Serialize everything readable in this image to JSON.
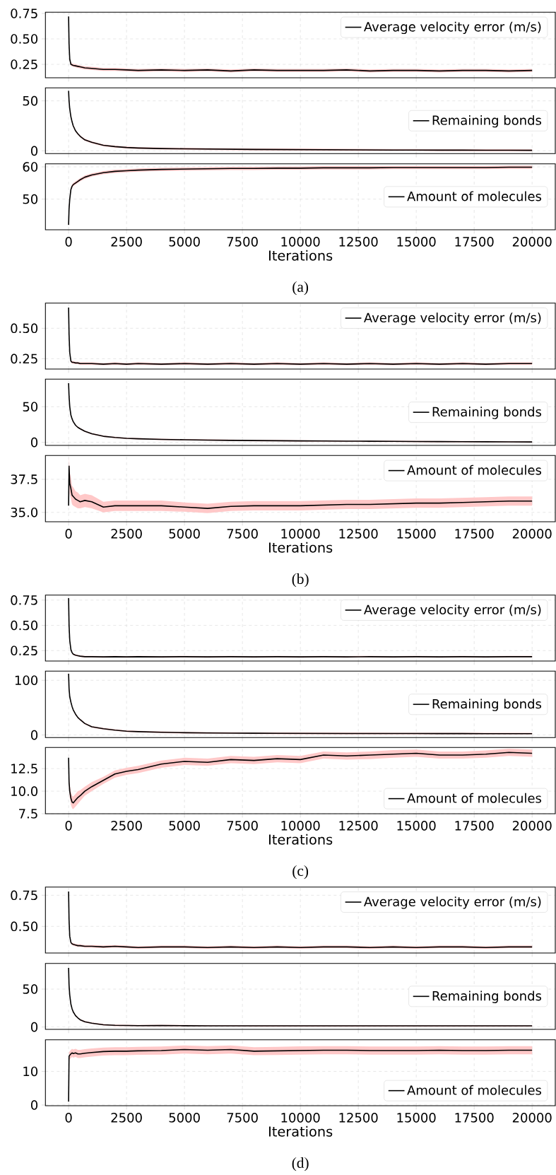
{
  "chart_data": [
    {
      "type": "line",
      "x": [
        0,
        20,
        50,
        100,
        150,
        200,
        300,
        400,
        500,
        700,
        1000,
        1500,
        2000,
        2500,
        3000,
        4000,
        5000,
        6000,
        7000,
        8000,
        9000,
        10000,
        11000,
        12000,
        13000,
        14000,
        15000,
        16000,
        17000,
        18000,
        19000,
        20000
      ],
      "xlim": [
        -1000,
        21000
      ],
      "xticks": [
        0,
        2500,
        5000,
        7500,
        10000,
        12500,
        15000,
        17500,
        20000
      ],
      "ylim": [
        0.118,
        0.762
      ],
      "yticks": [
        {
          "value": 0.25,
          "label": "0.25"
        },
        {
          "value": 0.5,
          "label": "0.50"
        },
        {
          "value": 0.75,
          "label": "0.75"
        }
      ],
      "grid": true,
      "legend": "top right",
      "tick_labels": "y",
      "series": [
        {
          "name": "Average velocity error (m/s)",
          "color": "#000000",
          "values": [
            0.72,
            0.45,
            0.3,
            0.25,
            0.245,
            0.24,
            0.235,
            0.23,
            0.225,
            0.215,
            0.21,
            0.2,
            0.2,
            0.195,
            0.19,
            0.195,
            0.19,
            0.195,
            0.185,
            0.195,
            0.19,
            0.19,
            0.19,
            0.195,
            0.185,
            0.19,
            0.19,
            0.185,
            0.19,
            0.19,
            0.185,
            0.19
          ],
          "lower": [
            0.705,
            0.435,
            0.285,
            0.235,
            0.23,
            0.225,
            0.22,
            0.215,
            0.21,
            0.2,
            0.195,
            0.185,
            0.185,
            0.18,
            0.175,
            0.18,
            0.175,
            0.18,
            0.17,
            0.18,
            0.175,
            0.175,
            0.175,
            0.18,
            0.17,
            0.175,
            0.175,
            0.17,
            0.175,
            0.175,
            0.17,
            0.175
          ],
          "upper": [
            0.735,
            0.465,
            0.315,
            0.265,
            0.26,
            0.255,
            0.25,
            0.245,
            0.24,
            0.23,
            0.225,
            0.215,
            0.215,
            0.21,
            0.205,
            0.21,
            0.205,
            0.21,
            0.2,
            0.21,
            0.205,
            0.205,
            0.205,
            0.21,
            0.2,
            0.205,
            0.205,
            0.2,
            0.205,
            0.205,
            0.2,
            0.205
          ]
        }
      ]
    },
    {
      "type": "line",
      "x": [
        0,
        20,
        50,
        100,
        150,
        200,
        300,
        400,
        500,
        700,
        1000,
        1500,
        2000,
        2500,
        3000,
        4000,
        5000,
        6000,
        7000,
        8000,
        9000,
        10000,
        11000,
        12000,
        13000,
        14000,
        15000,
        16000,
        17000,
        18000,
        19000,
        20000
      ],
      "xlim": [
        -1000,
        21000
      ],
      "xticks": [
        0,
        2500,
        5000,
        7500,
        10000,
        12500,
        15000,
        17500,
        20000
      ],
      "ylim": [
        -2.8,
        63
      ],
      "yticks": [
        0,
        50
      ],
      "grid": true,
      "legend": "right",
      "tick_labels": "y",
      "series": [
        {
          "name": "Remaining bonds",
          "color": "#000000",
          "values": [
            60,
            50,
            42,
            34,
            29,
            25,
            20,
            17,
            14.5,
            11,
            8.5,
            5.5,
            4.2,
            3.3,
            2.8,
            2.3,
            2.0,
            1.8,
            1.6,
            1.4,
            1.3,
            1.2,
            1.1,
            1.0,
            0.9,
            0.8,
            0.8,
            0.7,
            0.7,
            0.6,
            0.6,
            0.5
          ],
          "lower": [
            59,
            49,
            41,
            33,
            28,
            24,
            19,
            16,
            13.5,
            10,
            7.5,
            4.5,
            3.2,
            2.3,
            1.8,
            1.3,
            1.0,
            0.8,
            0.6,
            0.4,
            0.3,
            0.2,
            0.1,
            0.0,
            -0.1,
            -0.2,
            -0.2,
            -0.3,
            -0.3,
            -0.4,
            -0.4,
            -0.5
          ],
          "upper": [
            61,
            51,
            43,
            35,
            30,
            26,
            21,
            18,
            15.5,
            12,
            9.5,
            6.5,
            5.2,
            4.3,
            3.8,
            3.3,
            3.0,
            2.8,
            2.6,
            2.4,
            2.3,
            2.2,
            2.1,
            2.0,
            1.9,
            1.8,
            1.8,
            1.7,
            1.7,
            1.6,
            1.6,
            1.5
          ]
        }
      ]
    },
    {
      "type": "line",
      "x": [
        0,
        20,
        50,
        100,
        150,
        200,
        300,
        400,
        500,
        700,
        1000,
        1500,
        2000,
        2500,
        3000,
        4000,
        5000,
        6000,
        7000,
        8000,
        9000,
        10000,
        11000,
        12000,
        13000,
        14000,
        15000,
        16000,
        17000,
        18000,
        19000,
        20000
      ],
      "xlim": [
        -1000,
        21000
      ],
      "xticks": [
        0,
        2500,
        5000,
        7500,
        10000,
        12500,
        15000,
        17500,
        20000
      ],
      "ylim": [
        40.5,
        60.95
      ],
      "yticks": [
        50,
        60
      ],
      "grid": true,
      "legend": "right",
      "xlabel": "Iterations",
      "annotations": [
        "(a)"
      ],
      "series": [
        {
          "name": "Amount of molecules",
          "color": "#000000",
          "values": [
            42,
            47,
            50,
            53,
            54,
            54.5,
            55,
            55.5,
            56,
            56.8,
            57.5,
            58.2,
            58.6,
            58.8,
            59,
            59.2,
            59.3,
            59.4,
            59.5,
            59.5,
            59.6,
            59.6,
            59.7,
            59.7,
            59.7,
            59.8,
            59.8,
            59.8,
            59.8,
            59.8,
            59.9,
            59.9
          ],
          "lower": [
            41.5,
            46.5,
            49.5,
            52.5,
            53.5,
            54,
            54.5,
            55,
            55.5,
            56.3,
            57,
            57.7,
            58.1,
            58.3,
            58.5,
            58.7,
            58.8,
            58.9,
            59,
            59,
            59.1,
            59.1,
            59.2,
            59.2,
            59.2,
            59.3,
            59.3,
            59.3,
            59.3,
            59.3,
            59.4,
            59.4
          ],
          "upper": [
            42.5,
            47.5,
            50.5,
            53.5,
            54.5,
            55,
            55.5,
            56,
            56.5,
            57.3,
            58,
            58.7,
            59.1,
            59.3,
            59.5,
            59.7,
            59.8,
            59.9,
            60,
            60,
            60.1,
            60.1,
            60.2,
            60.2,
            60.2,
            60.3,
            60.3,
            60.3,
            60.3,
            60.3,
            60.4,
            60.4
          ]
        }
      ]
    },
    {
      "type": "line",
      "x": [
        0,
        20,
        50,
        100,
        150,
        200,
        300,
        400,
        500,
        700,
        1000,
        1500,
        2000,
        2500,
        3000,
        4000,
        5000,
        6000,
        7000,
        8000,
        9000,
        10000,
        11000,
        12000,
        13000,
        14000,
        15000,
        16000,
        17000,
        18000,
        19000,
        20000
      ],
      "xlim": [
        -1000,
        21000
      ],
      "xticks": [
        0,
        2500,
        5000,
        7500,
        10000,
        12500,
        15000,
        17500,
        20000
      ],
      "ylim": [
        0.165,
        0.707
      ],
      "yticks": [
        {
          "value": 0.25,
          "label": "0.25"
        },
        {
          "value": 0.5,
          "label": "0.50"
        }
      ],
      "grid": true,
      "legend": "top right",
      "tick_labels": "y",
      "series": [
        {
          "name": "Average velocity error (m/s)",
          "color": "#000000",
          "values": [
            0.67,
            0.45,
            0.3,
            0.23,
            0.22,
            0.22,
            0.215,
            0.215,
            0.21,
            0.21,
            0.21,
            0.205,
            0.21,
            0.205,
            0.21,
            0.205,
            0.21,
            0.205,
            0.21,
            0.205,
            0.21,
            0.205,
            0.21,
            0.205,
            0.21,
            0.205,
            0.21,
            0.205,
            0.21,
            0.205,
            0.21,
            0.21
          ],
          "lower": [
            0.66,
            0.44,
            0.29,
            0.22,
            0.21,
            0.21,
            0.205,
            0.205,
            0.2,
            0.2,
            0.2,
            0.195,
            0.2,
            0.195,
            0.2,
            0.195,
            0.2,
            0.195,
            0.2,
            0.195,
            0.2,
            0.195,
            0.2,
            0.195,
            0.2,
            0.195,
            0.2,
            0.195,
            0.2,
            0.195,
            0.2,
            0.2
          ],
          "upper": [
            0.68,
            0.46,
            0.31,
            0.24,
            0.23,
            0.23,
            0.225,
            0.225,
            0.22,
            0.22,
            0.22,
            0.215,
            0.22,
            0.215,
            0.22,
            0.215,
            0.22,
            0.215,
            0.22,
            0.215,
            0.22,
            0.215,
            0.22,
            0.215,
            0.22,
            0.215,
            0.22,
            0.215,
            0.22,
            0.215,
            0.22,
            0.22
          ]
        }
      ]
    },
    {
      "type": "line",
      "x": [
        0,
        20,
        50,
        100,
        150,
        200,
        300,
        400,
        500,
        700,
        1000,
        1500,
        2000,
        2500,
        3000,
        4000,
        5000,
        6000,
        7000,
        8000,
        9000,
        10000,
        11000,
        12000,
        13000,
        14000,
        15000,
        16000,
        17000,
        18000,
        19000,
        20000
      ],
      "xlim": [
        -1000,
        21000
      ],
      "xticks": [
        0,
        2500,
        5000,
        7500,
        10000,
        12500,
        15000,
        17500,
        20000
      ],
      "ylim": [
        -4.3,
        88.7
      ],
      "yticks": [
        0,
        50
      ],
      "grid": true,
      "legend": "right",
      "tick_labels": "y",
      "series": [
        {
          "name": "Remaining bonds",
          "color": "#000000",
          "values": [
            83,
            65,
            50,
            38,
            33,
            29,
            24,
            21,
            19,
            15.5,
            12,
            8.5,
            6.8,
            5.6,
            5,
            4.2,
            3.6,
            3.2,
            2.8,
            2.5,
            2.3,
            2.0,
            1.9,
            1.7,
            1.5,
            1.4,
            1.2,
            1.0,
            0.9,
            0.8,
            0.7,
            0.5
          ],
          "lower": [
            82,
            64,
            49,
            37,
            32,
            28,
            23,
            20,
            18,
            14.5,
            11,
            7.5,
            5.8,
            4.6,
            4,
            3.2,
            2.6,
            2.2,
            1.8,
            1.5,
            1.3,
            1.0,
            0.9,
            0.7,
            0.5,
            0.4,
            0.2,
            0.0,
            -0.1,
            -0.2,
            -0.3,
            -0.5
          ],
          "upper": [
            84,
            66,
            51,
            39,
            34,
            30,
            25,
            22,
            20,
            16.5,
            13,
            9.5,
            7.8,
            6.6,
            6,
            5.2,
            4.6,
            4.2,
            3.8,
            3.5,
            3.3,
            3.0,
            2.9,
            2.7,
            2.5,
            2.4,
            2.2,
            2.0,
            1.85,
            1.8,
            1.7,
            1.5
          ]
        }
      ]
    },
    {
      "type": "line",
      "x": [
        0,
        20,
        50,
        100,
        150,
        200,
        300,
        400,
        500,
        700,
        1000,
        1500,
        2000,
        2500,
        3000,
        4000,
        5000,
        6000,
        7000,
        8000,
        9000,
        10000,
        11000,
        12000,
        13000,
        14000,
        15000,
        16000,
        17000,
        18000,
        19000,
        20000
      ],
      "xlim": [
        -1000,
        21000
      ],
      "xticks": [
        0,
        2500,
        5000,
        7500,
        10000,
        12500,
        15000,
        17500,
        20000
      ],
      "ylim": [
        34.29,
        39.3
      ],
      "yticks": [
        {
          "value": 35,
          "label": "35.0"
        },
        {
          "value": 37.5,
          "label": "37.5"
        }
      ],
      "grid": true,
      "legend": "top right",
      "xlabel": "Iterations",
      "annotations": [
        "(b)"
      ],
      "series": [
        {
          "name": "Amount of molecules",
          "color": "#000000",
          "values": [
            35.5,
            38.5,
            37.2,
            36.8,
            36.3,
            36.2,
            36.0,
            35.9,
            35.8,
            35.9,
            35.8,
            35.4,
            35.5,
            35.5,
            35.5,
            35.5,
            35.4,
            35.3,
            35.45,
            35.5,
            35.5,
            35.5,
            35.55,
            35.6,
            35.6,
            35.65,
            35.7,
            35.7,
            35.75,
            35.8,
            35.85,
            35.85
          ],
          "lower": [
            35.0,
            37.8,
            36.4,
            36.0,
            35.6,
            35.5,
            35.4,
            35.3,
            35.3,
            35.4,
            35.3,
            35.0,
            35.1,
            35.1,
            35.1,
            35.1,
            35.05,
            34.95,
            35.1,
            35.15,
            35.15,
            35.15,
            35.2,
            35.25,
            35.25,
            35.3,
            35.35,
            35.35,
            35.4,
            35.45,
            35.5,
            35.5
          ],
          "upper": [
            36.0,
            39.2,
            38.0,
            37.6,
            37.0,
            36.9,
            36.6,
            36.5,
            36.3,
            36.4,
            36.3,
            35.8,
            35.9,
            35.9,
            35.9,
            35.9,
            35.75,
            35.65,
            35.8,
            35.85,
            35.85,
            35.85,
            35.9,
            35.95,
            35.95,
            36.0,
            36.05,
            36.05,
            36.1,
            36.15,
            36.2,
            36.2
          ]
        }
      ]
    },
    {
      "type": "line",
      "x": [
        0,
        20,
        50,
        100,
        150,
        200,
        300,
        400,
        500,
        700,
        1000,
        1500,
        2000,
        2500,
        3000,
        4000,
        5000,
        6000,
        7000,
        8000,
        9000,
        10000,
        11000,
        12000,
        13000,
        14000,
        15000,
        16000,
        17000,
        18000,
        19000,
        20000
      ],
      "xlim": [
        -1000,
        21000
      ],
      "xticks": [
        0,
        2500,
        5000,
        7500,
        10000,
        12500,
        15000,
        17500,
        20000
      ],
      "ylim": [
        0.147,
        0.8
      ],
      "yticks": [
        {
          "value": 0.25,
          "label": "0.25"
        },
        {
          "value": 0.5,
          "label": "0.50"
        },
        {
          "value": 0.75,
          "label": "0.75"
        }
      ],
      "grid": true,
      "legend": "top right",
      "tick_labels": "y",
      "series": [
        {
          "name": "Average velocity error (m/s)",
          "color": "#000000",
          "values": [
            0.77,
            0.5,
            0.35,
            0.26,
            0.23,
            0.215,
            0.205,
            0.2,
            0.195,
            0.19,
            0.19,
            0.188,
            0.19,
            0.188,
            0.19,
            0.188,
            0.19,
            0.188,
            0.19,
            0.188,
            0.19,
            0.188,
            0.19,
            0.188,
            0.19,
            0.188,
            0.19,
            0.188,
            0.19,
            0.188,
            0.19,
            0.19
          ],
          "lower": [
            0.762,
            0.492,
            0.342,
            0.252,
            0.222,
            0.207,
            0.197,
            0.192,
            0.187,
            0.182,
            0.182,
            0.18,
            0.182,
            0.18,
            0.182,
            0.18,
            0.182,
            0.18,
            0.182,
            0.18,
            0.182,
            0.18,
            0.182,
            0.18,
            0.182,
            0.18,
            0.182,
            0.18,
            0.182,
            0.18,
            0.182,
            0.182
          ],
          "upper": [
            0.778,
            0.508,
            0.358,
            0.268,
            0.238,
            0.223,
            0.213,
            0.208,
            0.203,
            0.198,
            0.198,
            0.196,
            0.198,
            0.196,
            0.198,
            0.196,
            0.198,
            0.196,
            0.198,
            0.196,
            0.198,
            0.196,
            0.198,
            0.196,
            0.198,
            0.196,
            0.198,
            0.196,
            0.198,
            0.196,
            0.198,
            0.198
          ]
        }
      ]
    },
    {
      "type": "line",
      "x": [
        0,
        20,
        50,
        100,
        150,
        200,
        300,
        400,
        500,
        700,
        1000,
        1500,
        2000,
        2500,
        3000,
        4000,
        5000,
        6000,
        7000,
        8000,
        9000,
        10000,
        11000,
        12000,
        13000,
        14000,
        15000,
        16000,
        17000,
        18000,
        19000,
        20000
      ],
      "xlim": [
        -1000,
        21000
      ],
      "xticks": [
        0,
        2500,
        5000,
        7500,
        10000,
        12500,
        15000,
        17500,
        20000
      ],
      "ylim": [
        -4.7,
        116.8
      ],
      "yticks": [
        0,
        100
      ],
      "grid": true,
      "legend": "right",
      "tick_labels": "y",
      "series": [
        {
          "name": "Remaining bonds",
          "color": "#000000",
          "values": [
            112,
            85,
            70,
            60,
            52,
            46,
            38,
            32,
            28,
            21,
            15,
            11.5,
            9,
            7,
            6.2,
            5,
            4.2,
            3.8,
            3.5,
            3.3,
            3.1,
            3.0,
            2.9,
            2.8,
            2.8,
            2.7,
            2.7,
            2.6,
            2.6,
            2.5,
            2.5,
            2.5
          ],
          "lower": [
            110.5,
            83.5,
            68.5,
            58.5,
            50.5,
            44.5,
            36.5,
            30.5,
            26.5,
            19.5,
            13.5,
            10,
            7.5,
            5.5,
            4.7,
            3.5,
            2.7,
            2.3,
            2,
            1.8,
            1.6,
            1.5,
            1.4,
            1.3,
            1.3,
            1.2,
            1.2,
            1.1,
            1.1,
            1,
            1,
            1
          ],
          "upper": [
            113.5,
            86.5,
            71.5,
            61.5,
            53.5,
            47.5,
            39.5,
            33.5,
            29.5,
            22.5,
            16.5,
            13,
            10.5,
            8.5,
            7.7,
            6.5,
            5.7,
            5.3,
            5,
            4.8,
            4.6,
            4.5,
            4.4,
            4.3,
            4.3,
            4.2,
            4.2,
            4.1,
            4.1,
            4,
            4,
            4
          ]
        }
      ]
    },
    {
      "type": "line",
      "x": [
        0,
        20,
        50,
        100,
        150,
        200,
        300,
        400,
        500,
        700,
        1000,
        1500,
        2000,
        2500,
        3000,
        4000,
        5000,
        6000,
        7000,
        8000,
        9000,
        10000,
        11000,
        12000,
        13000,
        14000,
        15000,
        16000,
        17000,
        18000,
        19000,
        20000
      ],
      "xlim": [
        -1000,
        21000
      ],
      "xticks": [
        0,
        2500,
        5000,
        7500,
        10000,
        12500,
        15000,
        17500,
        20000
      ],
      "ylim": [
        7.5,
        14.84
      ],
      "yticks": [
        {
          "value": 7.5,
          "label": "7.5"
        },
        {
          "value": 10,
          "label": "10.0"
        },
        {
          "value": 12.5,
          "label": "12.5"
        }
      ],
      "grid": true,
      "legend": "bottom right",
      "xlabel": "Iterations",
      "annotations": [
        "(c)"
      ],
      "series": [
        {
          "name": "Amount of molecules",
          "color": "#000000",
          "values": [
            13.7,
            11,
            10,
            9.2,
            8.8,
            8.7,
            9.0,
            9.3,
            9.5,
            10.0,
            10.5,
            11.2,
            11.9,
            12.2,
            12.4,
            13.0,
            13.3,
            13.2,
            13.5,
            13.4,
            13.6,
            13.5,
            14.0,
            13.9,
            14.0,
            14.1,
            14.2,
            14.0,
            14.0,
            14.1,
            14.3,
            14.2
          ],
          "lower": [
            13.2,
            10.3,
            9.3,
            8.5,
            8.1,
            8.0,
            8.3,
            8.6,
            8.9,
            9.5,
            10.0,
            10.8,
            11.5,
            11.8,
            12.0,
            12.6,
            12.9,
            12.8,
            13.1,
            13.0,
            13.2,
            13.1,
            13.6,
            13.5,
            13.55,
            13.7,
            13.8,
            13.6,
            13.6,
            13.7,
            13.9,
            13.8
          ],
          "upper": [
            14.2,
            11.7,
            10.7,
            9.9,
            9.5,
            9.4,
            9.7,
            10.0,
            10.1,
            10.5,
            11.0,
            11.6,
            12.3,
            12.6,
            12.8,
            13.4,
            13.7,
            13.6,
            13.9,
            13.8,
            14.0,
            13.9,
            14.4,
            14.3,
            14.4,
            14.55,
            14.6,
            14.4,
            14.4,
            14.5,
            14.7,
            14.6
          ]
        }
      ]
    },
    {
      "type": "line",
      "x": [
        0,
        20,
        50,
        100,
        150,
        200,
        300,
        400,
        500,
        700,
        1000,
        1500,
        2000,
        2500,
        3000,
        4000,
        5000,
        6000,
        7000,
        8000,
        9000,
        10000,
        11000,
        12000,
        13000,
        14000,
        15000,
        16000,
        17000,
        18000,
        19000,
        20000
      ],
      "xlim": [
        -1000,
        21000
      ],
      "xticks": [
        0,
        2500,
        5000,
        7500,
        10000,
        12500,
        15000,
        17500,
        20000
      ],
      "ylim": [
        0.286,
        0.816
      ],
      "yticks": [
        {
          "value": 0.5,
          "label": "0.50"
        },
        {
          "value": 0.75,
          "label": "0.75"
        }
      ],
      "grid": true,
      "legend": "top right",
      "tick_labels": "y",
      "series": [
        {
          "name": "Average velocity error (m/s)",
          "color": "#000000",
          "values": [
            0.78,
            0.55,
            0.42,
            0.37,
            0.36,
            0.355,
            0.35,
            0.345,
            0.345,
            0.34,
            0.34,
            0.335,
            0.34,
            0.335,
            0.33,
            0.335,
            0.335,
            0.33,
            0.335,
            0.33,
            0.335,
            0.33,
            0.335,
            0.335,
            0.33,
            0.335,
            0.33,
            0.335,
            0.335,
            0.33,
            0.335,
            0.335
          ],
          "lower": [
            0.77,
            0.54,
            0.41,
            0.36,
            0.35,
            0.345,
            0.34,
            0.335,
            0.335,
            0.33,
            0.33,
            0.325,
            0.33,
            0.325,
            0.32,
            0.325,
            0.325,
            0.32,
            0.325,
            0.32,
            0.325,
            0.32,
            0.325,
            0.325,
            0.32,
            0.325,
            0.32,
            0.325,
            0.325,
            0.32,
            0.325,
            0.325
          ],
          "upper": [
            0.79,
            0.56,
            0.43,
            0.38,
            0.37,
            0.365,
            0.36,
            0.355,
            0.355,
            0.35,
            0.35,
            0.345,
            0.35,
            0.345,
            0.34,
            0.345,
            0.345,
            0.34,
            0.345,
            0.34,
            0.345,
            0.34,
            0.345,
            0.345,
            0.34,
            0.345,
            0.34,
            0.345,
            0.345,
            0.34,
            0.345,
            0.345
          ]
        }
      ]
    },
    {
      "type": "line",
      "x": [
        0,
        20,
        50,
        100,
        150,
        200,
        300,
        400,
        500,
        700,
        1000,
        1500,
        2000,
        2500,
        3000,
        4000,
        5000,
        6000,
        7000,
        8000,
        9000,
        10000,
        11000,
        12000,
        13000,
        14000,
        15000,
        16000,
        17000,
        18000,
        19000,
        20000
      ],
      "xlim": [
        -1000,
        21000
      ],
      "xticks": [
        0,
        2500,
        5000,
        7500,
        10000,
        12500,
        15000,
        17500,
        20000
      ],
      "ylim": [
        -3.1,
        83.9
      ],
      "yticks": [
        0,
        50
      ],
      "grid": true,
      "legend": "right",
      "tick_labels": "y",
      "series": [
        {
          "name": "Remaining bonds",
          "color": "#000000",
          "values": [
            78,
            55,
            42,
            30,
            24,
            20,
            15,
            12,
            9.5,
            7,
            5,
            3,
            2.2,
            2,
            1.8,
            1.9,
            1.7,
            1.6,
            1.6,
            1.5,
            1.5,
            1.5,
            1.5,
            1.5,
            1.5,
            1.5,
            1.5,
            1.5,
            1.5,
            1.5,
            1.5,
            1.5
          ],
          "lower": [
            77,
            54,
            41,
            29,
            23,
            19,
            14,
            11,
            8.5,
            6,
            4,
            2,
            1.2,
            1,
            0.8,
            0.9,
            0.7,
            0.6,
            0.6,
            0.5,
            0.5,
            0.5,
            0.5,
            0.5,
            0.5,
            0.5,
            0.5,
            0.5,
            0.5,
            0.5,
            0.5,
            0.5
          ],
          "upper": [
            79,
            56,
            43,
            31,
            25,
            21,
            16,
            13,
            10.5,
            8,
            6,
            4,
            3.2,
            3,
            2.8,
            2.9,
            2.7,
            2.6,
            2.6,
            2.5,
            2.5,
            2.5,
            2.5,
            2.5,
            2.5,
            2.5,
            2.5,
            2.5,
            2.5,
            2.5,
            2.5,
            2.5
          ]
        }
      ]
    },
    {
      "type": "line",
      "x": [
        0,
        20,
        50,
        100,
        150,
        200,
        300,
        400,
        500,
        700,
        1000,
        1500,
        2000,
        2500,
        3000,
        4000,
        5000,
        6000,
        7000,
        8000,
        9000,
        10000,
        11000,
        12000,
        13000,
        14000,
        15000,
        16000,
        17000,
        18000,
        19000,
        20000
      ],
      "xlim": [
        -1000,
        21000
      ],
      "xticks": [
        0,
        2500,
        5000,
        7500,
        10000,
        12500,
        15000,
        17500,
        20000
      ],
      "ylim": [
        -0.2,
        19.4
      ],
      "yticks": [
        0,
        10
      ],
      "grid": true,
      "legend": "bottom right",
      "xlabel": "Iterations",
      "annotations": [
        "(d)"
      ],
      "series": [
        {
          "name": "Amount of molecules",
          "color": "#000000",
          "values": [
            1,
            14.5,
            14.8,
            15.2,
            15.5,
            15.3,
            15.5,
            15.2,
            15.2,
            15.4,
            15.6,
            15.9,
            16.0,
            16.0,
            16.1,
            16.2,
            16.5,
            16.3,
            16.5,
            16.0,
            16.1,
            16.2,
            16.3,
            16.3,
            16.2,
            16.2,
            16.2,
            16.3,
            16.2,
            16.2,
            16.3,
            16.3
          ],
          "lower": [
            0.5,
            13.3,
            13.6,
            14.0,
            14.3,
            14.1,
            14.3,
            14.0,
            14.0,
            14.2,
            14.4,
            14.7,
            14.8,
            14.8,
            14.9,
            15.0,
            15.3,
            15.1,
            15.3,
            14.8,
            14.85,
            15.0,
            15.1,
            15.1,
            15.0,
            15.0,
            15.0,
            15.1,
            15.0,
            15.0,
            15.1,
            15.1
          ],
          "upper": [
            1.5,
            15.7,
            16.0,
            16.4,
            16.7,
            16.5,
            16.7,
            16.4,
            16.4,
            16.6,
            16.8,
            17.1,
            17.2,
            17.2,
            17.3,
            17.4,
            17.7,
            17.5,
            17.7,
            17.2,
            17.3,
            17.45,
            17.5,
            17.5,
            17.4,
            17.4,
            17.4,
            17.5,
            17.4,
            17.4,
            17.5,
            17.5
          ]
        }
      ]
    }
  ]
}
